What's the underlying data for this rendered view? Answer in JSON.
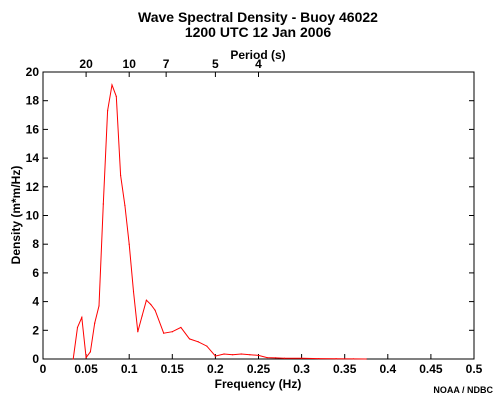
{
  "chart_data": {
    "type": "line",
    "title": "Wave Spectral Density - Buoy 46022",
    "subtitle": "1200 UTC  12 Jan 2006",
    "xlabel": "Frequency (Hz)",
    "ylabel": "Density (m*m/Hz)",
    "top_axis_label": "Period (s)",
    "credit": "NOAA / NDBC",
    "xlim": [
      0,
      0.5
    ],
    "ylim": [
      0,
      20
    ],
    "x_ticks": [
      "0",
      "0.05",
      "0.1",
      "0.15",
      "0.2",
      "0.25",
      "0.3",
      "0.35",
      "0.4",
      "0.45",
      "0.5"
    ],
    "y_ticks": [
      "0",
      "2",
      "4",
      "6",
      "8",
      "10",
      "12",
      "14",
      "16",
      "18",
      "20"
    ],
    "period_ticks": [
      "20",
      "10",
      "7",
      "5",
      "4"
    ],
    "line_color": "#ff0000",
    "series": [
      {
        "x": [
          0.035,
          0.04,
          0.045,
          0.05,
          0.055,
          0.06,
          0.065,
          0.07,
          0.075,
          0.08,
          0.085,
          0.09,
          0.095,
          0.1,
          0.105,
          0.11,
          0.115,
          0.12,
          0.125,
          0.13,
          0.14,
          0.15,
          0.16,
          0.17,
          0.18,
          0.19,
          0.2,
          0.21,
          0.22,
          0.23,
          0.24,
          0.25,
          0.26,
          0.27,
          0.28,
          0.3,
          0.32,
          0.34,
          0.36,
          0.375
        ],
        "values": [
          0.0,
          2.2,
          2.9,
          0.1,
          0.5,
          2.5,
          3.7,
          10.8,
          17.3,
          19.1,
          18.3,
          12.8,
          10.7,
          8.0,
          4.7,
          1.9,
          3.0,
          4.1,
          3.8,
          3.4,
          1.8,
          1.9,
          2.2,
          1.4,
          1.2,
          0.9,
          0.2,
          0.35,
          0.3,
          0.35,
          0.3,
          0.25,
          0.1,
          0.08,
          0.05,
          0.05,
          0.03,
          0.02,
          0.01,
          0.0
        ]
      }
    ]
  }
}
